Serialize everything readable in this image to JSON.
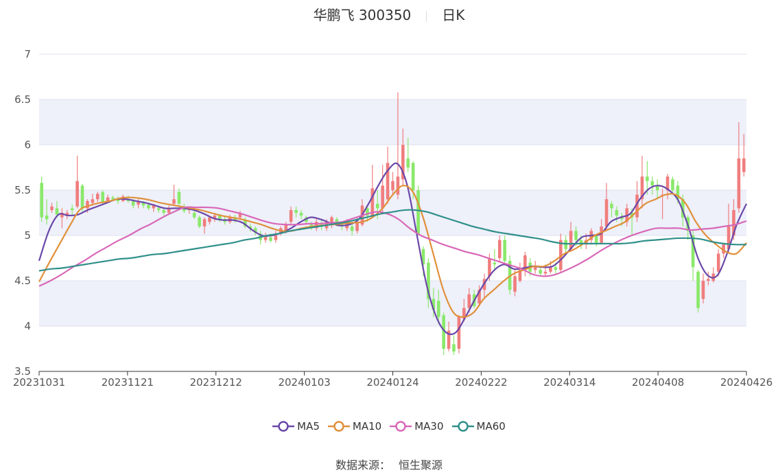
{
  "header": {
    "name": "华鹏飞 300350",
    "period": "日K"
  },
  "legend": [
    {
      "name": "MA5",
      "color": "#6a48a8"
    },
    {
      "name": "MA10",
      "color": "#e0903a"
    },
    {
      "name": "MA30",
      "color": "#d868b8"
    },
    {
      "name": "MA60",
      "color": "#2f8f8a"
    }
  ],
  "source": {
    "label": "数据来源：",
    "value": "恒生聚源"
  },
  "colors": {
    "up": "#f07d7d",
    "down": "#8ae86a",
    "band": "#eef0fa"
  },
  "chart_data": {
    "type": "candlestick",
    "ylim": [
      3.5,
      7
    ],
    "yticks": [
      "3.5",
      "4",
      "4.5",
      "5",
      "5.5",
      "6",
      "6.5",
      "7"
    ],
    "xticks": [
      "20231031",
      "20231121",
      "20231212",
      "20240103",
      "20240124",
      "20240222",
      "20240314",
      "20240408",
      "20240426"
    ],
    "candles": [
      [
        5.58,
        5.2,
        5.65,
        5.15
      ],
      [
        5.22,
        5.18,
        5.4,
        5.12
      ],
      [
        5.28,
        5.32,
        5.36,
        5.25
      ],
      [
        5.3,
        5.23,
        5.38,
        5.2
      ],
      [
        5.2,
        5.25,
        5.3,
        5.08
      ],
      [
        5.22,
        5.25,
        5.28,
        5.18
      ],
      [
        5.3,
        5.28,
        5.34,
        5.23
      ],
      [
        5.32,
        5.6,
        5.88,
        5.3
      ],
      [
        5.55,
        5.3,
        5.57,
        5.26
      ],
      [
        5.3,
        5.38,
        5.4,
        5.25
      ],
      [
        5.36,
        5.4,
        5.46,
        5.33
      ],
      [
        5.4,
        5.46,
        5.48,
        5.37
      ],
      [
        5.48,
        5.36,
        5.5,
        5.35
      ],
      [
        5.38,
        5.42,
        5.45,
        5.36
      ],
      [
        5.42,
        5.4,
        5.44,
        5.38
      ],
      [
        5.4,
        5.38,
        5.43,
        5.35
      ],
      [
        5.38,
        5.43,
        5.45,
        5.37
      ],
      [
        5.4,
        5.38,
        5.44,
        5.36
      ],
      [
        5.38,
        5.33,
        5.4,
        5.3
      ],
      [
        5.34,
        5.38,
        5.4,
        5.3
      ],
      [
        5.36,
        5.33,
        5.38,
        5.3
      ],
      [
        5.34,
        5.3,
        5.36,
        5.28
      ],
      [
        5.3,
        5.33,
        5.35,
        5.26
      ],
      [
        5.3,
        5.28,
        5.32,
        5.25
      ],
      [
        5.28,
        5.25,
        5.3,
        5.22
      ],
      [
        5.25,
        5.3,
        5.33,
        5.23
      ],
      [
        5.35,
        5.4,
        5.56,
        5.33
      ],
      [
        5.48,
        5.35,
        5.52,
        5.32
      ],
      [
        5.32,
        5.27,
        5.35,
        5.25
      ],
      [
        5.28,
        5.3,
        5.32,
        5.24
      ],
      [
        5.25,
        5.2,
        5.27,
        5.18
      ],
      [
        5.2,
        5.1,
        5.22,
        5.08
      ],
      [
        5.1,
        5.18,
        5.2,
        5.02
      ],
      [
        5.15,
        5.2,
        5.22,
        5.12
      ],
      [
        5.18,
        5.22,
        5.25,
        5.15
      ],
      [
        5.22,
        5.18,
        5.24,
        5.15
      ],
      [
        5.18,
        5.15,
        5.21,
        5.12
      ],
      [
        5.15,
        5.2,
        5.23,
        5.13
      ],
      [
        5.2,
        5.17,
        5.23,
        5.14
      ],
      [
        5.2,
        5.25,
        5.27,
        5.17
      ],
      [
        5.17,
        5.1,
        5.2,
        5.08
      ],
      [
        5.1,
        5.08,
        5.13,
        5.04
      ],
      [
        5.08,
        5.03,
        5.1,
        5.0
      ],
      [
        5.02,
        4.95,
        5.05,
        4.9
      ],
      [
        4.95,
        5.0,
        5.03,
        4.92
      ],
      [
        4.98,
        4.94,
        5.02,
        4.92
      ],
      [
        4.95,
        5.0,
        5.05,
        4.92
      ],
      [
        5.02,
        5.08,
        5.1,
        5.0
      ],
      [
        5.05,
        5.12,
        5.15,
        5.02
      ],
      [
        5.15,
        5.28,
        5.32,
        5.12
      ],
      [
        5.28,
        5.25,
        5.32,
        5.2
      ],
      [
        5.25,
        5.22,
        5.28,
        5.18
      ],
      [
        5.2,
        5.15,
        5.22,
        5.12
      ],
      [
        5.12,
        5.08,
        5.15,
        5.06
      ],
      [
        5.08,
        5.15,
        5.2,
        5.05
      ],
      [
        5.12,
        5.1,
        5.18,
        5.06
      ],
      [
        5.08,
        5.15,
        5.18,
        5.05
      ],
      [
        5.12,
        5.2,
        5.22,
        5.08
      ],
      [
        5.18,
        5.12,
        5.2,
        5.1
      ],
      [
        5.12,
        5.1,
        5.14,
        5.06
      ],
      [
        5.08,
        5.15,
        5.18,
        5.05
      ],
      [
        5.1,
        5.05,
        5.12,
        5.0
      ],
      [
        5.05,
        5.15,
        5.2,
        5.02
      ],
      [
        5.12,
        5.33,
        5.4,
        5.1
      ],
      [
        5.3,
        5.22,
        5.32,
        5.15
      ],
      [
        5.22,
        5.52,
        5.78,
        5.2
      ],
      [
        5.35,
        5.3,
        5.5,
        5.18
      ],
      [
        5.3,
        5.55,
        5.78,
        5.25
      ],
      [
        5.4,
        5.8,
        5.98,
        5.35
      ],
      [
        5.5,
        5.6,
        5.7,
        5.45
      ],
      [
        5.45,
        5.65,
        6.58,
        5.4
      ],
      [
        5.62,
        6.0,
        6.18,
        5.55
      ],
      [
        5.85,
        5.75,
        6.08,
        5.7
      ],
      [
        5.8,
        5.5,
        5.82,
        5.4
      ],
      [
        5.5,
        5.02,
        5.55,
        5.0
      ],
      [
        4.85,
        4.68,
        4.88,
        4.55
      ],
      [
        4.7,
        4.3,
        4.75,
        4.2
      ],
      [
        4.3,
        4.18,
        4.42,
        4.1
      ],
      [
        4.28,
        4.1,
        4.4,
        4.02
      ],
      [
        4.12,
        3.75,
        4.15,
        3.68
      ],
      [
        3.75,
        3.95,
        4.05,
        3.72
      ],
      [
        3.8,
        3.72,
        3.9,
        3.68
      ],
      [
        3.75,
        4.1,
        4.12,
        3.7
      ],
      [
        4.08,
        4.2,
        4.3,
        4.05
      ],
      [
        4.2,
        4.35,
        4.42,
        4.15
      ],
      [
        4.35,
        4.22,
        4.4,
        4.2
      ],
      [
        4.25,
        4.4,
        4.45,
        4.22
      ],
      [
        4.4,
        4.52,
        4.58,
        4.3
      ],
      [
        4.55,
        4.75,
        4.8,
        4.5
      ],
      [
        4.7,
        4.68,
        4.85,
        4.62
      ],
      [
        4.75,
        4.95,
        5.0,
        4.7
      ],
      [
        4.95,
        4.72,
        5.0,
        4.7
      ],
      [
        4.72,
        4.4,
        4.78,
        4.35
      ],
      [
        4.38,
        4.55,
        4.62,
        4.33
      ],
      [
        4.5,
        4.62,
        4.7,
        4.48
      ],
      [
        4.62,
        4.78,
        4.82,
        4.55
      ],
      [
        4.7,
        4.6,
        4.75,
        4.55
      ],
      [
        4.62,
        4.65,
        4.72,
        4.58
      ],
      [
        4.62,
        4.58,
        4.65,
        4.55
      ],
      [
        4.58,
        4.6,
        4.68,
        4.55
      ],
      [
        4.6,
        4.65,
        4.72,
        4.58
      ],
      [
        4.65,
        4.62,
        4.7,
        4.58
      ],
      [
        4.62,
        4.95,
        5.02,
        4.6
      ],
      [
        4.95,
        4.85,
        5.0,
        4.8
      ],
      [
        4.85,
        5.05,
        5.15,
        4.82
      ],
      [
        5.05,
        4.95,
        5.1,
        4.88
      ],
      [
        4.95,
        4.9,
        5.0,
        4.85
      ],
      [
        4.9,
        4.95,
        5.02,
        4.85
      ],
      [
        4.95,
        5.05,
        5.08,
        4.9
      ],
      [
        5.0,
        4.92,
        5.02,
        4.88
      ],
      [
        4.92,
        5.1,
        5.18,
        4.9
      ],
      [
        5.1,
        5.4,
        5.58,
        5.05
      ],
      [
        5.35,
        5.3,
        5.38,
        5.2
      ],
      [
        5.28,
        5.22,
        5.32,
        5.15
      ],
      [
        5.2,
        5.18,
        5.25,
        5.1
      ],
      [
        5.15,
        5.3,
        5.35,
        5.1
      ],
      [
        5.25,
        5.2,
        5.3,
        5.0
      ],
      [
        5.2,
        5.45,
        5.6,
        5.15
      ],
      [
        5.4,
        5.65,
        5.88,
        5.3
      ],
      [
        5.65,
        5.6,
        5.82,
        5.45
      ],
      [
        5.6,
        5.55,
        5.65,
        5.45
      ],
      [
        5.55,
        5.5,
        5.62,
        5.4
      ],
      [
        5.45,
        5.45,
        5.52,
        5.18
      ],
      [
        5.5,
        5.65,
        5.68,
        5.4
      ],
      [
        5.62,
        5.5,
        5.65,
        5.48
      ],
      [
        5.55,
        5.4,
        5.6,
        5.35
      ],
      [
        5.4,
        5.2,
        5.45,
        5.1
      ],
      [
        5.2,
        5.05,
        5.22,
        4.95
      ],
      [
        5.0,
        4.65,
        5.05,
        4.5
      ],
      [
        4.6,
        4.2,
        4.62,
        4.15
      ],
      [
        4.3,
        4.5,
        4.58,
        4.25
      ],
      [
        4.5,
        4.52,
        4.6,
        4.45
      ],
      [
        4.5,
        4.58,
        4.65,
        4.48
      ],
      [
        4.6,
        4.8,
        4.85,
        4.55
      ],
      [
        4.8,
        4.9,
        4.92,
        4.75
      ],
      [
        4.85,
        5.1,
        5.35,
        4.8
      ],
      [
        5.0,
        5.28,
        5.4,
        4.95
      ],
      [
        5.3,
        5.85,
        6.25,
        5.25
      ],
      [
        5.7,
        5.85,
        6.12,
        5.65
      ]
    ],
    "series": [
      {
        "name": "MA5",
        "values": [
          4.72,
          5.05,
          5.23,
          5.22,
          5.23,
          5.28,
          5.32,
          5.36,
          5.4,
          5.4,
          5.38,
          5.36,
          5.33,
          5.3,
          5.3,
          5.3,
          5.28,
          5.24,
          5.19,
          5.17,
          5.17,
          5.14,
          5.06,
          5.0,
          5.0,
          5.03,
          5.08,
          5.15,
          5.2,
          5.18,
          5.14,
          5.11,
          5.12,
          5.18,
          5.35,
          5.55,
          5.72,
          5.79,
          5.55,
          5.0,
          4.45,
          4.1,
          3.93,
          3.93,
          4.1,
          4.3,
          4.48,
          4.62,
          4.68,
          4.63,
          4.64,
          4.66,
          4.65,
          4.66,
          4.75,
          4.87,
          4.98,
          5.0,
          5.02,
          5.15,
          5.2,
          5.24,
          5.4,
          5.52,
          5.55,
          5.5,
          5.38,
          5.1,
          4.75,
          4.56,
          4.56,
          4.8,
          5.12,
          5.35
        ]
      },
      {
        "name": "MA10",
        "values": [
          4.49,
          4.7,
          4.9,
          5.1,
          5.28,
          5.33,
          5.36,
          5.38,
          5.41,
          5.42,
          5.41,
          5.39,
          5.36,
          5.34,
          5.32,
          5.3,
          5.28,
          5.25,
          5.22,
          5.2,
          5.18,
          5.15,
          5.12,
          5.08,
          5.05,
          5.05,
          5.08,
          5.1,
          5.11,
          5.12,
          5.13,
          5.14,
          5.15,
          5.2,
          5.3,
          5.45,
          5.55,
          5.48,
          5.2,
          4.8,
          4.4,
          4.15,
          4.1,
          4.15,
          4.3,
          4.4,
          4.5,
          4.58,
          4.62,
          4.66,
          4.66,
          4.72,
          4.8,
          4.85,
          4.92,
          5.0,
          5.05,
          5.1,
          5.15,
          5.25,
          5.35,
          5.4,
          5.45,
          5.45,
          5.35,
          5.15,
          5.0,
          4.9,
          4.82,
          4.8,
          4.92
        ]
      },
      {
        "name": "MA30",
        "values": [
          4.44,
          4.5,
          4.57,
          4.65,
          4.72,
          4.8,
          4.87,
          4.94,
          5.0,
          5.07,
          5.13,
          5.2,
          5.26,
          5.31,
          5.31,
          5.31,
          5.3,
          5.27,
          5.24,
          5.2,
          5.16,
          5.13,
          5.12,
          5.12,
          5.13,
          5.13,
          5.14,
          5.15,
          5.19,
          5.23,
          5.26,
          5.24,
          5.18,
          5.08,
          5.0,
          4.95,
          4.9,
          4.86,
          4.82,
          4.79,
          4.75,
          4.71,
          4.67,
          4.63,
          4.57,
          4.55,
          4.57,
          4.62,
          4.68,
          4.75,
          4.83,
          4.9,
          4.96,
          5.01,
          5.05,
          5.08,
          5.08,
          5.08,
          5.06,
          5.07,
          5.08,
          5.1,
          5.12,
          5.16
        ]
      },
      {
        "name": "MA60",
        "values": [
          4.61,
          4.63,
          4.64,
          4.66,
          4.68,
          4.7,
          4.72,
          4.74,
          4.75,
          4.77,
          4.79,
          4.8,
          4.82,
          4.84,
          4.86,
          4.88,
          4.9,
          4.92,
          4.95,
          4.97,
          5.0,
          5.02,
          5.05,
          5.07,
          5.09,
          5.11,
          5.13,
          5.15,
          5.18,
          5.21,
          5.24,
          5.26,
          5.28,
          5.28,
          5.26,
          5.22,
          5.18,
          5.14,
          5.1,
          5.07,
          5.04,
          5.02,
          5.0,
          4.98,
          4.96,
          4.93,
          4.91,
          4.91,
          4.91,
          4.91,
          4.91,
          4.91,
          4.92,
          4.94,
          4.95,
          4.96,
          4.97,
          4.97,
          4.96,
          4.93,
          4.91,
          4.9,
          4.9
        ]
      }
    ]
  }
}
